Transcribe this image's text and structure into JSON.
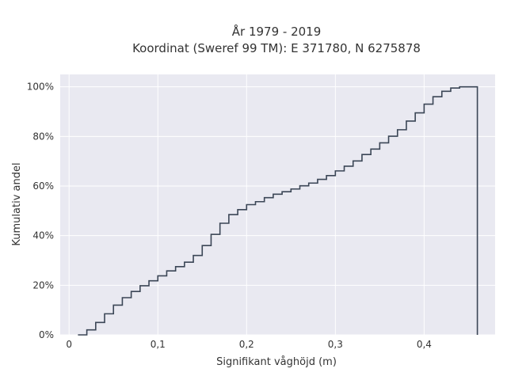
{
  "chart_data": {
    "type": "line",
    "style": "step",
    "title_lines": [
      "År 1979 - 2019",
      "Koordinat (Sweref 99 TM): E 371780, N 6275878"
    ],
    "xlabel": "Signifikant våghöjd (m)",
    "ylabel": "Kumulativ andel",
    "xlim": [
      -0.01,
      0.48
    ],
    "ylim": [
      0,
      1.05
    ],
    "x_ticks": [
      0,
      0.1,
      0.2,
      0.3,
      0.4
    ],
    "x_tick_labels": [
      "0",
      "0,1",
      "0,2",
      "0,3",
      "0,4"
    ],
    "y_ticks": [
      0,
      0.2,
      0.4,
      0.6,
      0.8,
      1.0
    ],
    "y_tick_labels": [
      "0%",
      "20%",
      "40%",
      "60%",
      "80%",
      "100%"
    ],
    "grid": true,
    "series": [
      {
        "color": "#3b4656",
        "x": [
          0.01,
          0.02,
          0.03,
          0.04,
          0.05,
          0.06,
          0.07,
          0.08,
          0.09,
          0.1,
          0.11,
          0.12,
          0.13,
          0.14,
          0.15,
          0.16,
          0.17,
          0.18,
          0.19,
          0.2,
          0.21,
          0.22,
          0.23,
          0.24,
          0.25,
          0.26,
          0.27,
          0.28,
          0.29,
          0.3,
          0.31,
          0.32,
          0.33,
          0.34,
          0.35,
          0.36,
          0.37,
          0.38,
          0.39,
          0.4,
          0.41,
          0.42,
          0.43,
          0.44,
          0.45,
          0.46
        ],
        "y": [
          0.0,
          0.02,
          0.05,
          0.085,
          0.12,
          0.15,
          0.175,
          0.198,
          0.218,
          0.238,
          0.258,
          0.275,
          0.293,
          0.32,
          0.36,
          0.405,
          0.45,
          0.485,
          0.505,
          0.525,
          0.537,
          0.553,
          0.567,
          0.577,
          0.588,
          0.601,
          0.612,
          0.627,
          0.642,
          0.661,
          0.68,
          0.701,
          0.727,
          0.749,
          0.774,
          0.801,
          0.827,
          0.862,
          0.895,
          0.93,
          0.96,
          0.982,
          0.995,
          1.0,
          1.0,
          0.0
        ]
      }
    ]
  }
}
